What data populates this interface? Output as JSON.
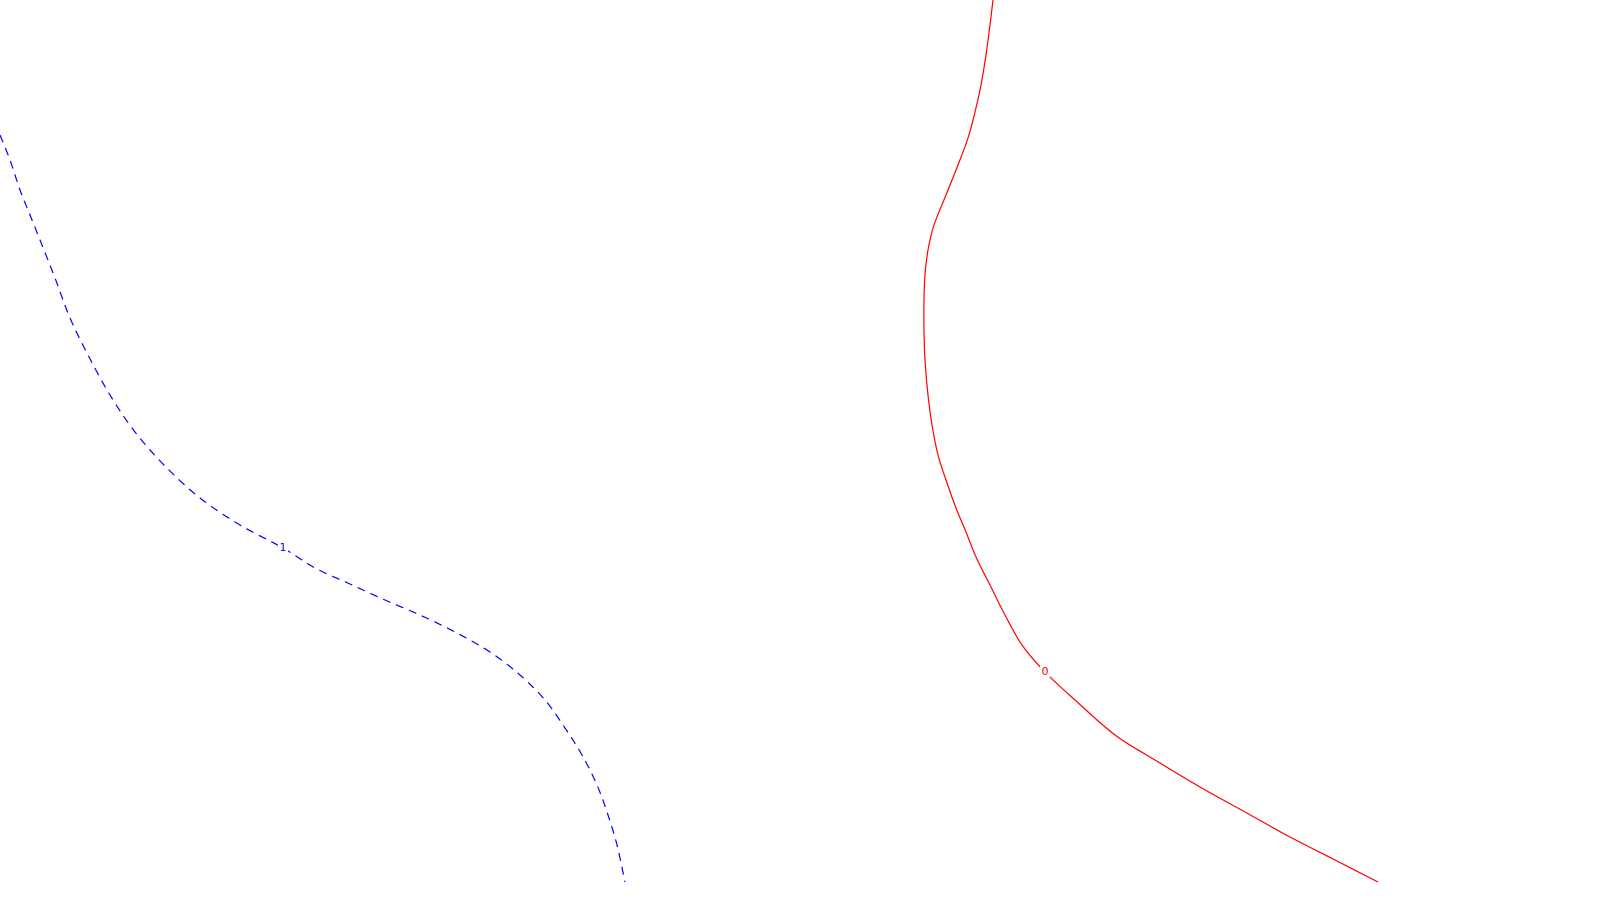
{
  "chart_data": {
    "type": "line",
    "title": "",
    "xlabel": "",
    "ylabel": "",
    "grid": false,
    "legend": "none",
    "series": [
      {
        "label": "1",
        "color": "#0000ff",
        "style": "dashed",
        "points": [
          [
            0,
            135
          ],
          [
            10,
            160
          ],
          [
            20,
            190
          ],
          [
            30,
            215
          ],
          [
            42,
            245
          ],
          [
            55,
            278
          ],
          [
            70,
            318
          ],
          [
            88,
            355
          ],
          [
            110,
            395
          ],
          [
            135,
            432
          ],
          [
            165,
            466
          ],
          [
            200,
            498
          ],
          [
            240,
            525
          ],
          [
            283,
            548
          ],
          [
            315,
            568
          ],
          [
            350,
            584
          ],
          [
            385,
            600
          ],
          [
            420,
            615
          ],
          [
            455,
            632
          ],
          [
            490,
            652
          ],
          [
            520,
            675
          ],
          [
            545,
            700
          ],
          [
            565,
            728
          ],
          [
            582,
            755
          ],
          [
            597,
            785
          ],
          [
            608,
            815
          ],
          [
            617,
            845
          ],
          [
            625,
            882
          ]
        ]
      },
      {
        "label": "0",
        "color": "#ff0000",
        "style": "solid",
        "points": [
          [
            993,
            0
          ],
          [
            990,
            25
          ],
          [
            986,
            55
          ],
          [
            981,
            85
          ],
          [
            975,
            112
          ],
          [
            968,
            138
          ],
          [
            958,
            165
          ],
          [
            946,
            195
          ],
          [
            934,
            225
          ],
          [
            928,
            250
          ],
          [
            925,
            275
          ],
          [
            924,
            300
          ],
          [
            924,
            330
          ],
          [
            925,
            360
          ],
          [
            928,
            395
          ],
          [
            932,
            425
          ],
          [
            938,
            455
          ],
          [
            946,
            480
          ],
          [
            956,
            508
          ],
          [
            966,
            532
          ],
          [
            976,
            557
          ],
          [
            990,
            585
          ],
          [
            1005,
            615
          ],
          [
            1022,
            645
          ],
          [
            1045,
            672
          ],
          [
            1075,
            700
          ],
          [
            1115,
            735
          ],
          [
            1155,
            760
          ],
          [
            1200,
            787
          ],
          [
            1245,
            812
          ],
          [
            1290,
            837
          ],
          [
            1335,
            860
          ],
          [
            1378,
            882
          ]
        ]
      }
    ]
  }
}
